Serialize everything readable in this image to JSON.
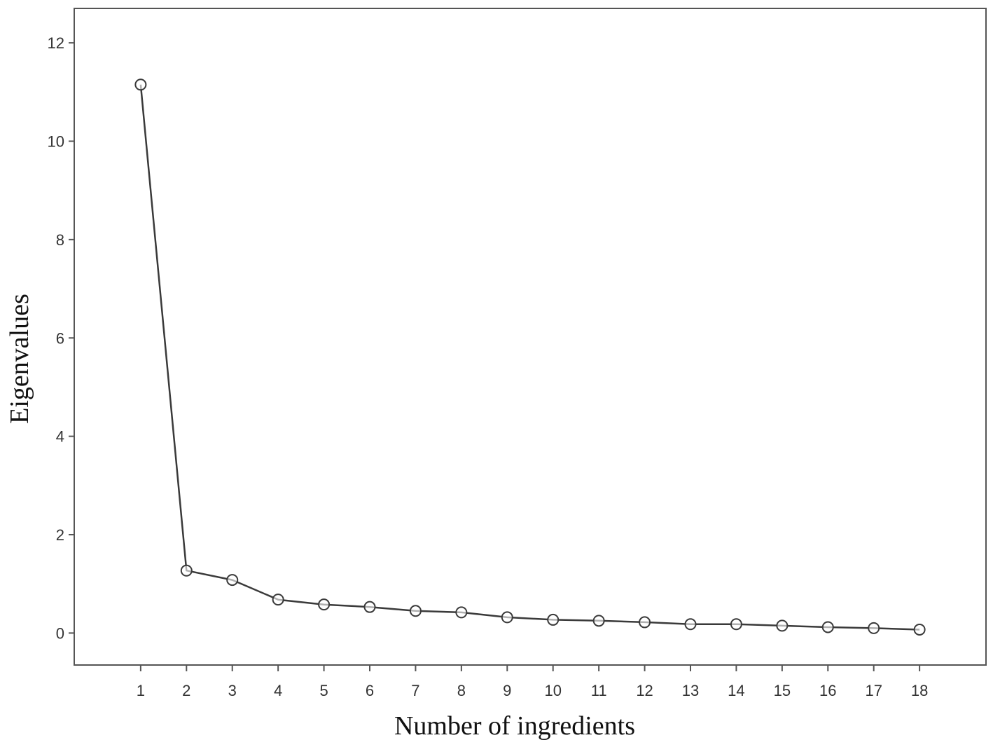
{
  "chart_data": {
    "type": "line",
    "title": "",
    "xlabel": "Number of ingredients",
    "ylabel": "Eigenvalues",
    "x": [
      1,
      2,
      3,
      4,
      5,
      6,
      7,
      8,
      9,
      10,
      11,
      12,
      13,
      14,
      15,
      16,
      17,
      18
    ],
    "x_tick_labels": [
      "1",
      "2",
      "3",
      "4",
      "5",
      "6",
      "7",
      "8",
      "9",
      "10",
      "11",
      "12",
      "13",
      "14",
      "15",
      "16",
      "17",
      "18"
    ],
    "y_tick_labels": [
      "0",
      "2",
      "4",
      "6",
      "8",
      "10",
      "12"
    ],
    "y_ticks": [
      0,
      2,
      4,
      6,
      8,
      10,
      12
    ],
    "series": [
      {
        "values": [
          11.15,
          1.27,
          1.08,
          0.68,
          0.58,
          0.53,
          0.45,
          0.42,
          0.32,
          0.27,
          0.25,
          0.22,
          0.18,
          0.18,
          0.15,
          0.12,
          0.1,
          0.07
        ]
      }
    ],
    "xlim": [
      -0.45,
      19.45
    ],
    "ylim": [
      -0.65,
      12.7
    ],
    "grid": false,
    "legend": "none",
    "marker": "open-circle",
    "line_color": "#3a3a3a",
    "frame_color": "#555555"
  }
}
